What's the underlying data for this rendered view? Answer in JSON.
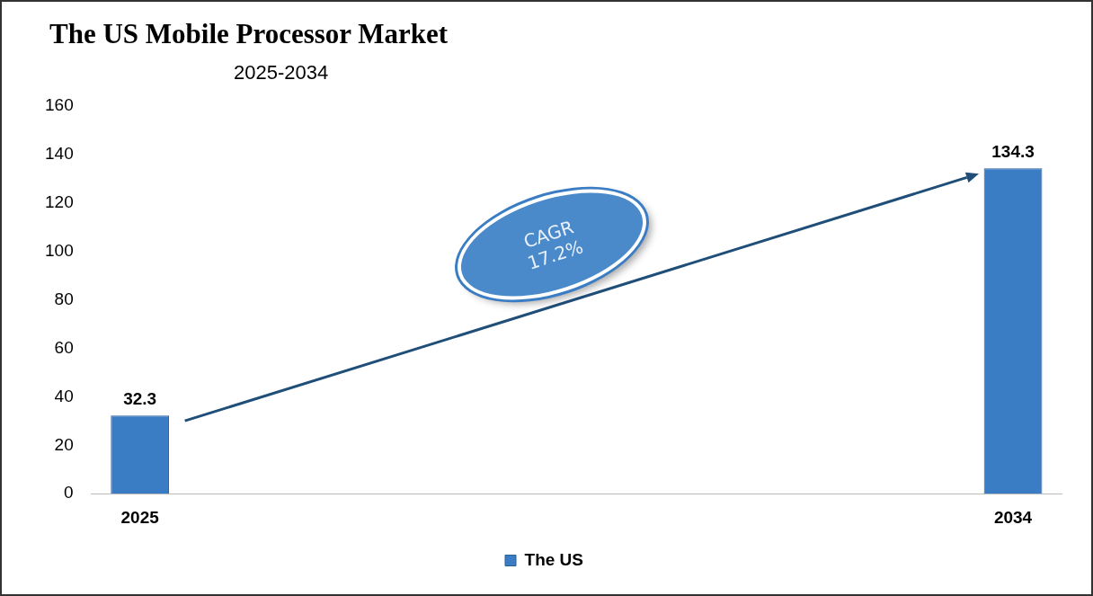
{
  "chart_data": {
    "type": "bar",
    "title": "The US Mobile Processor Market",
    "subtitle": "2025-2034",
    "categories": [
      "2025",
      null,
      null,
      null,
      null,
      null,
      null,
      null,
      null,
      "2034"
    ],
    "series": [
      {
        "name": "The US",
        "color": "#3b7dc4",
        "values": [
          32.3,
          null,
          null,
          null,
          null,
          null,
          null,
          null,
          null,
          134.3
        ]
      }
    ],
    "ylim": [
      0,
      160
    ],
    "yticks": [
      0,
      20,
      40,
      60,
      80,
      100,
      120,
      140,
      160
    ],
    "grid": false,
    "legend": "bottom",
    "data_labels": true,
    "annotations": [
      "CAGR 17.2%"
    ]
  }
}
